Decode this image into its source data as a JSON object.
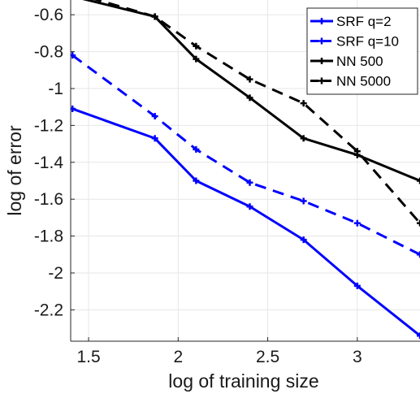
{
  "chart_data": {
    "type": "line",
    "xlabel": "log of training size",
    "ylabel": "log of error",
    "xlim": [
      1.4,
      3.35
    ],
    "ylim": [
      -2.37,
      -0.52
    ],
    "xticks": [
      "1.5",
      "2",
      "2.5",
      "3"
    ],
    "xtick_values": [
      1.5,
      2,
      2.5,
      3
    ],
    "yticks": [
      "-0.6",
      "-0.8",
      "-1",
      "-1.2",
      "-1.4",
      "-1.6",
      "-1.8",
      "-2",
      "-2.2"
    ],
    "ytick_values": [
      -0.6,
      -0.8,
      -1,
      -1.2,
      -1.4,
      -1.6,
      -1.8,
      -2,
      -2.2
    ],
    "grid": true,
    "legend_position": "top-right",
    "series": [
      {
        "name": "SRF q=2",
        "color": "#0000ff",
        "dash": "solid",
        "marker": "plus",
        "x": [
          1.41,
          1.87,
          2.1,
          2.4,
          2.7,
          3.0,
          3.35
        ],
        "y": [
          -1.11,
          -1.27,
          -1.5,
          -1.64,
          -1.82,
          -2.07,
          -2.34
        ]
      },
      {
        "name": "SRF q=10",
        "color": "#0000ff",
        "dash": "dashed",
        "marker": "plus",
        "x": [
          1.41,
          1.87,
          2.1,
          2.4,
          2.7,
          3.0,
          3.35
        ],
        "y": [
          -0.82,
          -1.15,
          -1.33,
          -1.51,
          -1.61,
          -1.73,
          -1.9
        ]
      },
      {
        "name": "NN 500",
        "color": "#000000",
        "dash": "solid",
        "marker": "plus",
        "x": [
          1.41,
          1.87,
          2.1,
          2.4,
          2.7,
          3.0,
          3.35
        ],
        "y": [
          -0.5,
          -0.61,
          -0.84,
          -1.05,
          -1.27,
          -1.36,
          -1.5
        ]
      },
      {
        "name": "NN 5000",
        "color": "#000000",
        "dash": "dashed",
        "marker": "plus",
        "x": [
          1.41,
          1.87,
          2.1,
          2.4,
          2.7,
          3.0,
          3.35
        ],
        "y": [
          -0.48,
          -0.61,
          -0.77,
          -0.95,
          -1.08,
          -1.34,
          -1.73
        ]
      }
    ]
  }
}
